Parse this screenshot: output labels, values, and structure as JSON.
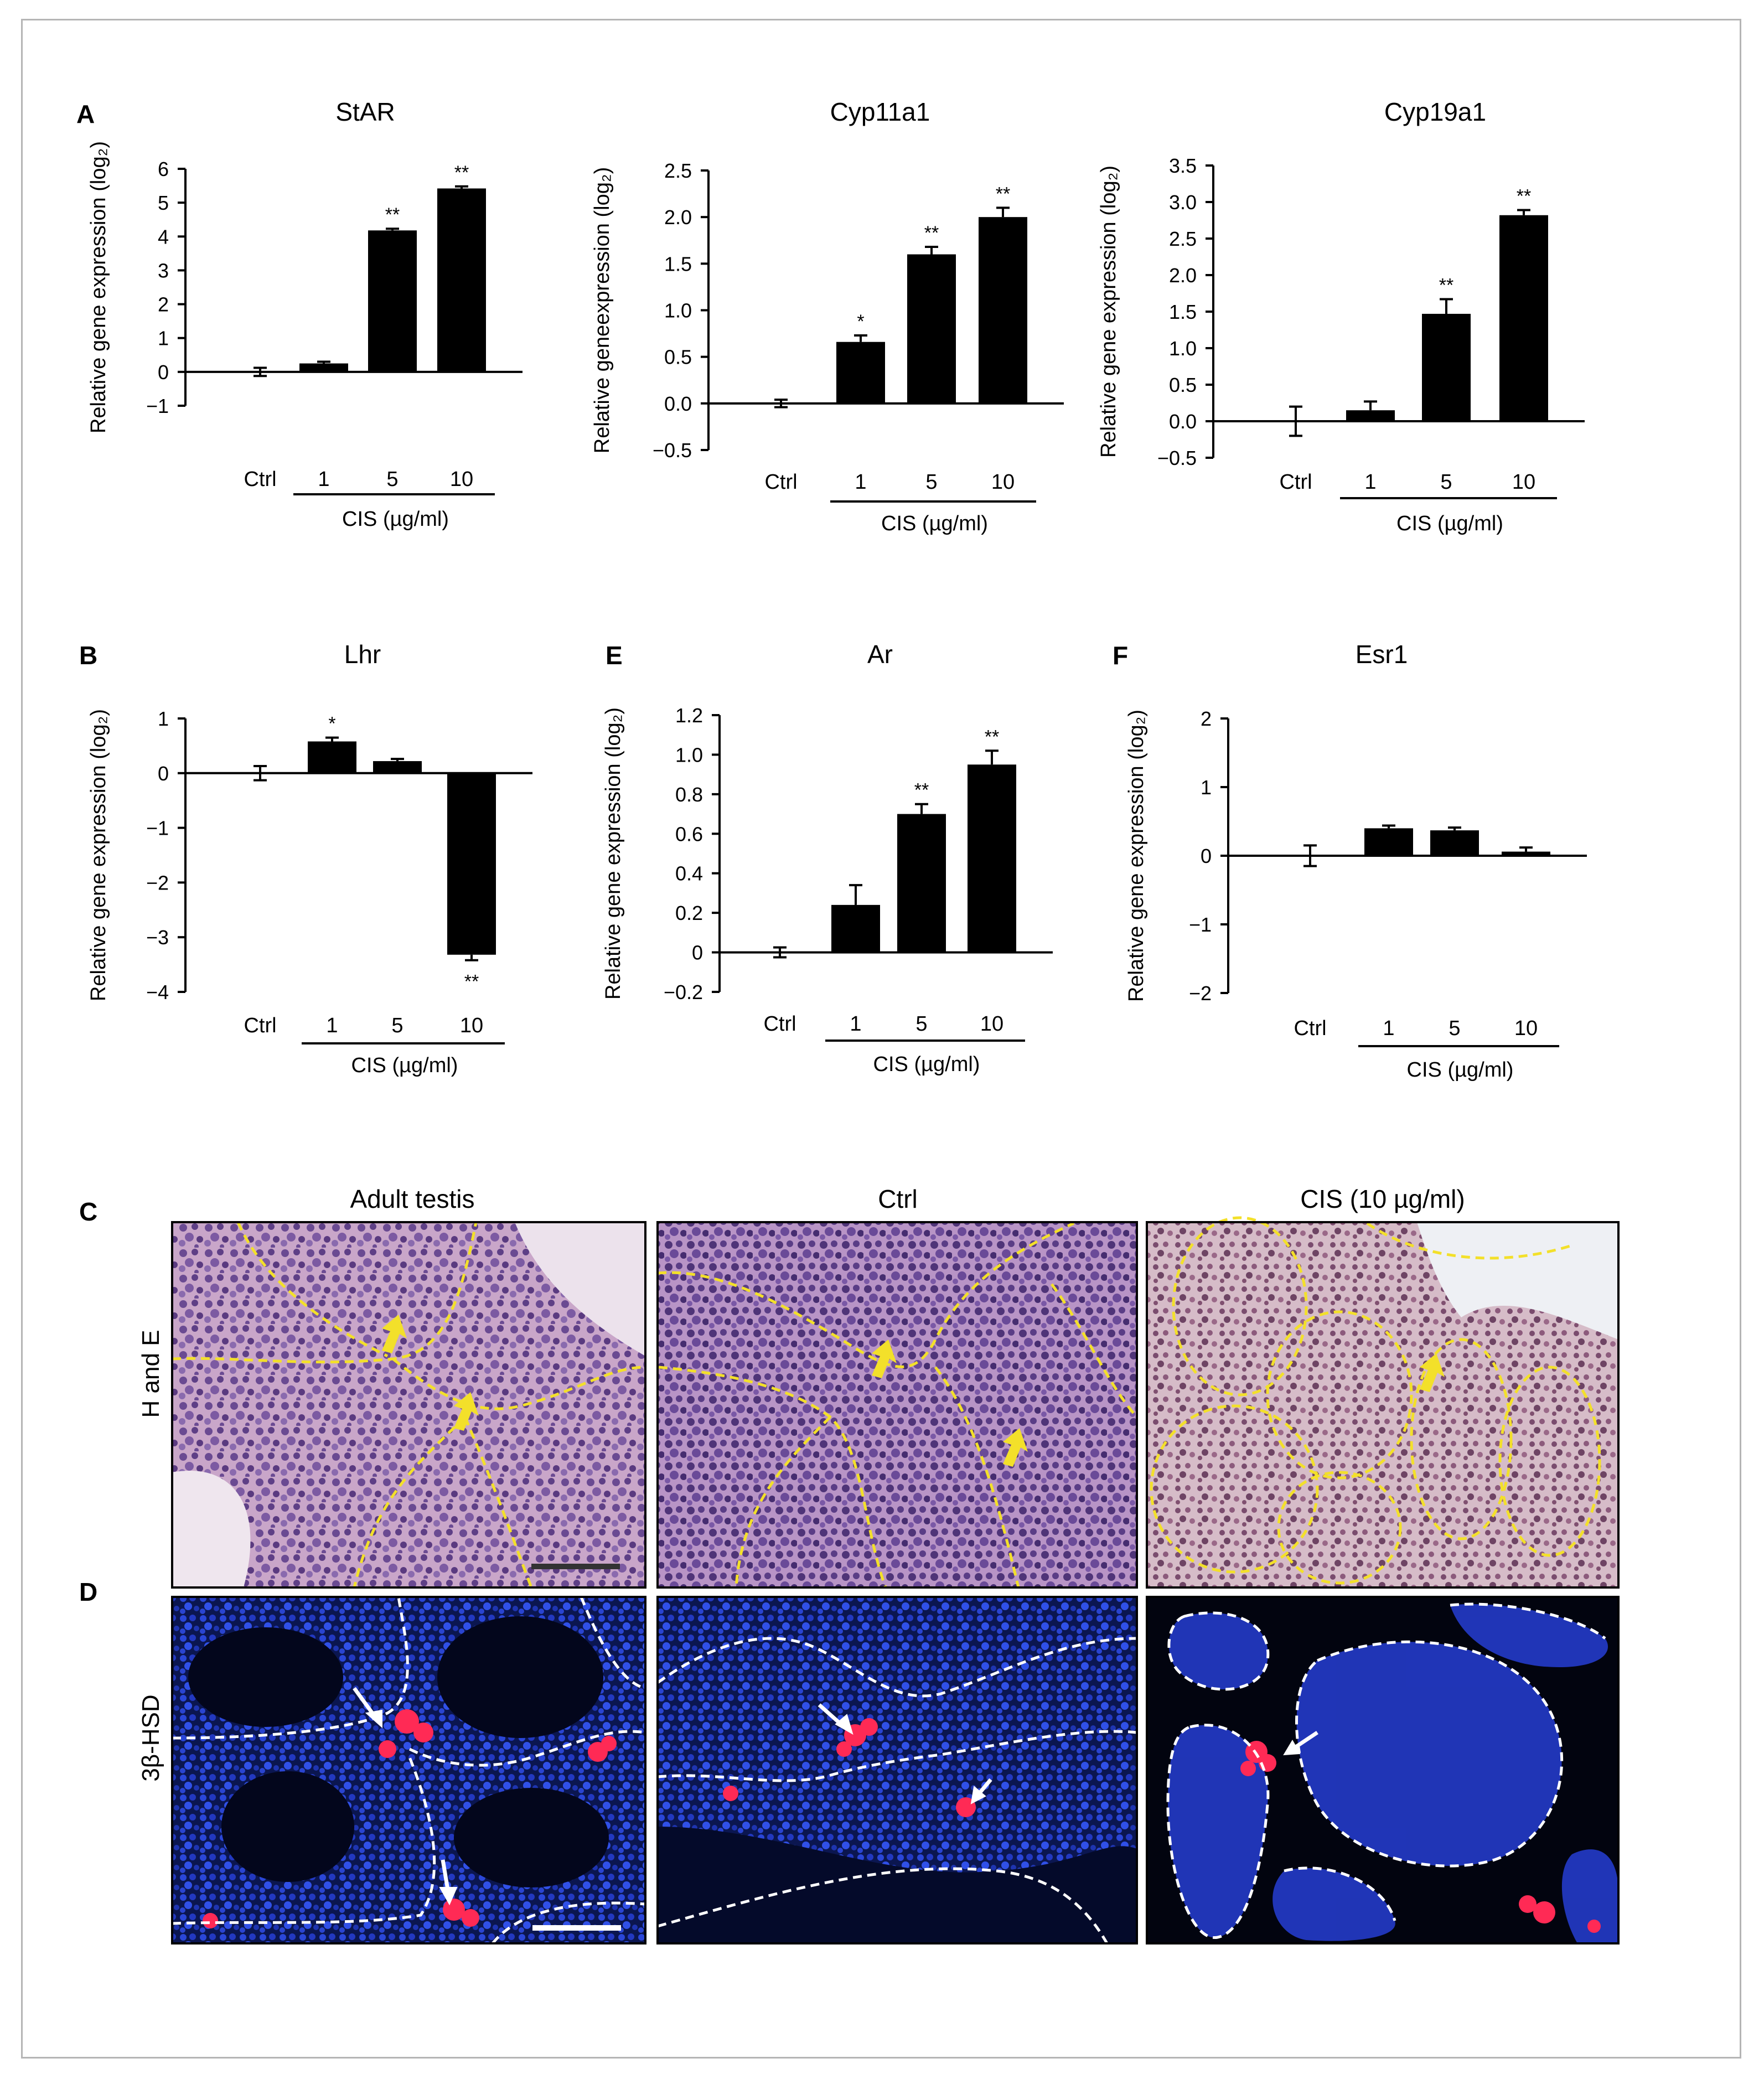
{
  "panel_letters": {
    "a": "A",
    "b": "B",
    "e": "E",
    "f": "F",
    "c": "C",
    "d": "D"
  },
  "x_group_label": "CIS (µg/ml)",
  "chart_data": [
    {
      "id": "A1",
      "type": "bar",
      "title": "StAR",
      "ylabel": "Relative gene expression (log₂)",
      "categories": [
        "Ctrl",
        "1",
        "5",
        "10"
      ],
      "values": [
        0,
        0.25,
        4.18,
        5.42
      ],
      "errors": [
        0.12,
        0.05,
        0.05,
        0.06
      ],
      "significance": [
        "",
        "",
        "**",
        "**"
      ],
      "ylim": [
        -1,
        6
      ],
      "yticks": [
        "-1",
        "0",
        "1",
        "2",
        "3",
        "4",
        "5",
        "6"
      ],
      "grid": false
    },
    {
      "id": "A2",
      "type": "bar",
      "title": "Cyp11a1",
      "ylabel": "Relative  geneexpression (log₂)",
      "categories": [
        "Ctrl",
        "1",
        "5",
        "10"
      ],
      "values": [
        0,
        0.66,
        1.6,
        2.0
      ],
      "errors": [
        0.04,
        0.07,
        0.08,
        0.1
      ],
      "significance": [
        "",
        "*",
        "**",
        "**"
      ],
      "ylim": [
        -0.5,
        2.5
      ],
      "yticks": [
        "-0.5",
        "0.0",
        "0.5",
        "1.0",
        "1.5",
        "2.0",
        "2.5"
      ],
      "grid": false
    },
    {
      "id": "A3",
      "type": "bar",
      "title": "Cyp19a1",
      "ylabel": "Relative gene expression (log₂)",
      "categories": [
        "Ctrl",
        "1",
        "5",
        "10"
      ],
      "values": [
        0,
        0.15,
        1.47,
        2.82
      ],
      "errors": [
        0.2,
        0.12,
        0.2,
        0.07
      ],
      "significance": [
        "",
        "",
        "**",
        "**"
      ],
      "ylim": [
        -0.5,
        3.5
      ],
      "yticks": [
        "-0.5",
        "0.0",
        "0.5",
        "1.0",
        "1.5",
        "2.0",
        "2.5",
        "3.0",
        "3.5"
      ],
      "grid": false
    },
    {
      "id": "B",
      "type": "bar",
      "title": "Lhr",
      "ylabel": "Relative gene expression (log₂)",
      "categories": [
        "Ctrl",
        "1",
        "5",
        "10"
      ],
      "values": [
        0,
        0.58,
        0.22,
        -3.32
      ],
      "errors": [
        0.13,
        0.07,
        0.04,
        0.1
      ],
      "significance": [
        "",
        "*",
        "",
        "**"
      ],
      "ylim": [
        -4,
        1
      ],
      "yticks": [
        "-4",
        "-3",
        "-2",
        "-1",
        "0",
        "1"
      ],
      "grid": false
    },
    {
      "id": "E",
      "type": "bar",
      "title": "Ar",
      "ylabel": "Relative gene expression (log₂)",
      "categories": [
        "Ctrl",
        "1",
        "5",
        "10"
      ],
      "values": [
        0,
        0.24,
        0.7,
        0.95
      ],
      "errors": [
        0.025,
        0.1,
        0.05,
        0.07
      ],
      "significance": [
        "",
        "",
        "**",
        "**"
      ],
      "ylim": [
        -0.2,
        1.2
      ],
      "yticks": [
        "-0.2",
        "0",
        "0.2",
        "0.4",
        "0.6",
        "0.8",
        "1.0",
        "1.2"
      ],
      "grid": false
    },
    {
      "id": "F",
      "type": "bar",
      "title": "Esr1",
      "ylabel": "Relative gene expression (log₂)",
      "categories": [
        "Ctrl",
        "1",
        "5",
        "10"
      ],
      "values": [
        0,
        0.4,
        0.37,
        0.06
      ],
      "errors": [
        0.15,
        0.04,
        0.04,
        0.06
      ],
      "significance": [
        "",
        "",
        "",
        ""
      ],
      "ylim": [
        -2,
        2
      ],
      "yticks": [
        "-2",
        "-1",
        "0",
        "1",
        "2"
      ],
      "grid": false
    }
  ],
  "micrographs": {
    "column_titles": [
      "Adult testis",
      "Ctrl",
      "CIS (10 µg/ml)"
    ],
    "row_labels": [
      "H and E",
      "3β-HSD"
    ],
    "he_colors": {
      "background": "#c9a6c9",
      "nucleus": "#5e3f86",
      "tubule_outline": "#f3e02a"
    },
    "if_colors": {
      "background": "#0a1030",
      "nucleus": "#2a46d8",
      "stain": "#ff2a55",
      "outline": "#ffffff"
    }
  }
}
